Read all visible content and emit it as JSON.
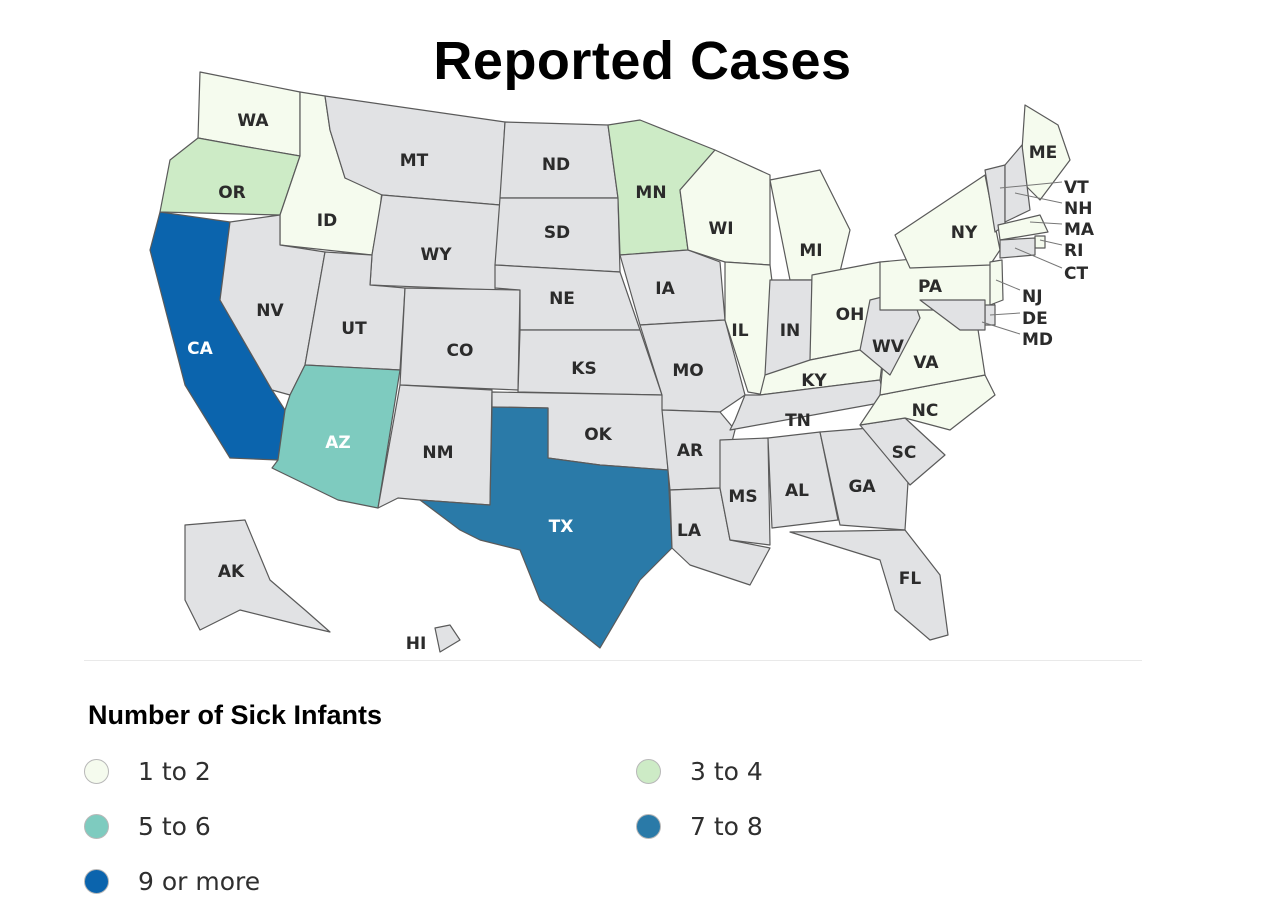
{
  "title": "Reported Cases",
  "legend": {
    "title": "Number of Sick Infants",
    "items": [
      {
        "label": "1 to 2",
        "color": "#f5fbee"
      },
      {
        "label": "3 to 4",
        "color": "#cdebc6"
      },
      {
        "label": "5 to 6",
        "color": "#7ecbbf"
      },
      {
        "label": "7 to 8",
        "color": "#2a7aa8"
      },
      {
        "label": "9 or more",
        "color": "#0b64ad"
      }
    ]
  },
  "no_cases_color": "#e1e2e4",
  "states": [
    {
      "abbr": "WA",
      "category": "1 to 2"
    },
    {
      "abbr": "OR",
      "category": "3 to 4"
    },
    {
      "abbr": "CA",
      "category": "9 or more"
    },
    {
      "abbr": "ID",
      "category": "1 to 2"
    },
    {
      "abbr": "NV",
      "category": "none"
    },
    {
      "abbr": "MT",
      "category": "none"
    },
    {
      "abbr": "WY",
      "category": "none"
    },
    {
      "abbr": "UT",
      "category": "none"
    },
    {
      "abbr": "AZ",
      "category": "5 to 6"
    },
    {
      "abbr": "CO",
      "category": "none"
    },
    {
      "abbr": "NM",
      "category": "none"
    },
    {
      "abbr": "ND",
      "category": "none"
    },
    {
      "abbr": "SD",
      "category": "none"
    },
    {
      "abbr": "NE",
      "category": "none"
    },
    {
      "abbr": "KS",
      "category": "none"
    },
    {
      "abbr": "OK",
      "category": "none"
    },
    {
      "abbr": "TX",
      "category": "7 to 8"
    },
    {
      "abbr": "MN",
      "category": "3 to 4"
    },
    {
      "abbr": "IA",
      "category": "none"
    },
    {
      "abbr": "MO",
      "category": "none"
    },
    {
      "abbr": "AR",
      "category": "none"
    },
    {
      "abbr": "LA",
      "category": "none"
    },
    {
      "abbr": "WI",
      "category": "1 to 2"
    },
    {
      "abbr": "IL",
      "category": "1 to 2"
    },
    {
      "abbr": "MI",
      "category": "1 to 2"
    },
    {
      "abbr": "IN",
      "category": "none"
    },
    {
      "abbr": "OH",
      "category": "1 to 2"
    },
    {
      "abbr": "KY",
      "category": "1 to 2"
    },
    {
      "abbr": "TN",
      "category": "none"
    },
    {
      "abbr": "MS",
      "category": "none"
    },
    {
      "abbr": "AL",
      "category": "none"
    },
    {
      "abbr": "GA",
      "category": "none"
    },
    {
      "abbr": "FL",
      "category": "none"
    },
    {
      "abbr": "SC",
      "category": "none"
    },
    {
      "abbr": "NC",
      "category": "1 to 2"
    },
    {
      "abbr": "VA",
      "category": "1 to 2"
    },
    {
      "abbr": "WV",
      "category": "none"
    },
    {
      "abbr": "PA",
      "category": "1 to 2"
    },
    {
      "abbr": "NY",
      "category": "1 to 2"
    },
    {
      "abbr": "ME",
      "category": "1 to 2"
    },
    {
      "abbr": "VT",
      "category": "none"
    },
    {
      "abbr": "NH",
      "category": "none"
    },
    {
      "abbr": "MA",
      "category": "1 to 2"
    },
    {
      "abbr": "RI",
      "category": "1 to 2"
    },
    {
      "abbr": "CT",
      "category": "none"
    },
    {
      "abbr": "NJ",
      "category": "1 to 2"
    },
    {
      "abbr": "DE",
      "category": "none"
    },
    {
      "abbr": "MD",
      "category": "none"
    },
    {
      "abbr": "AK",
      "category": "none"
    },
    {
      "abbr": "HI",
      "category": "none"
    }
  ]
}
